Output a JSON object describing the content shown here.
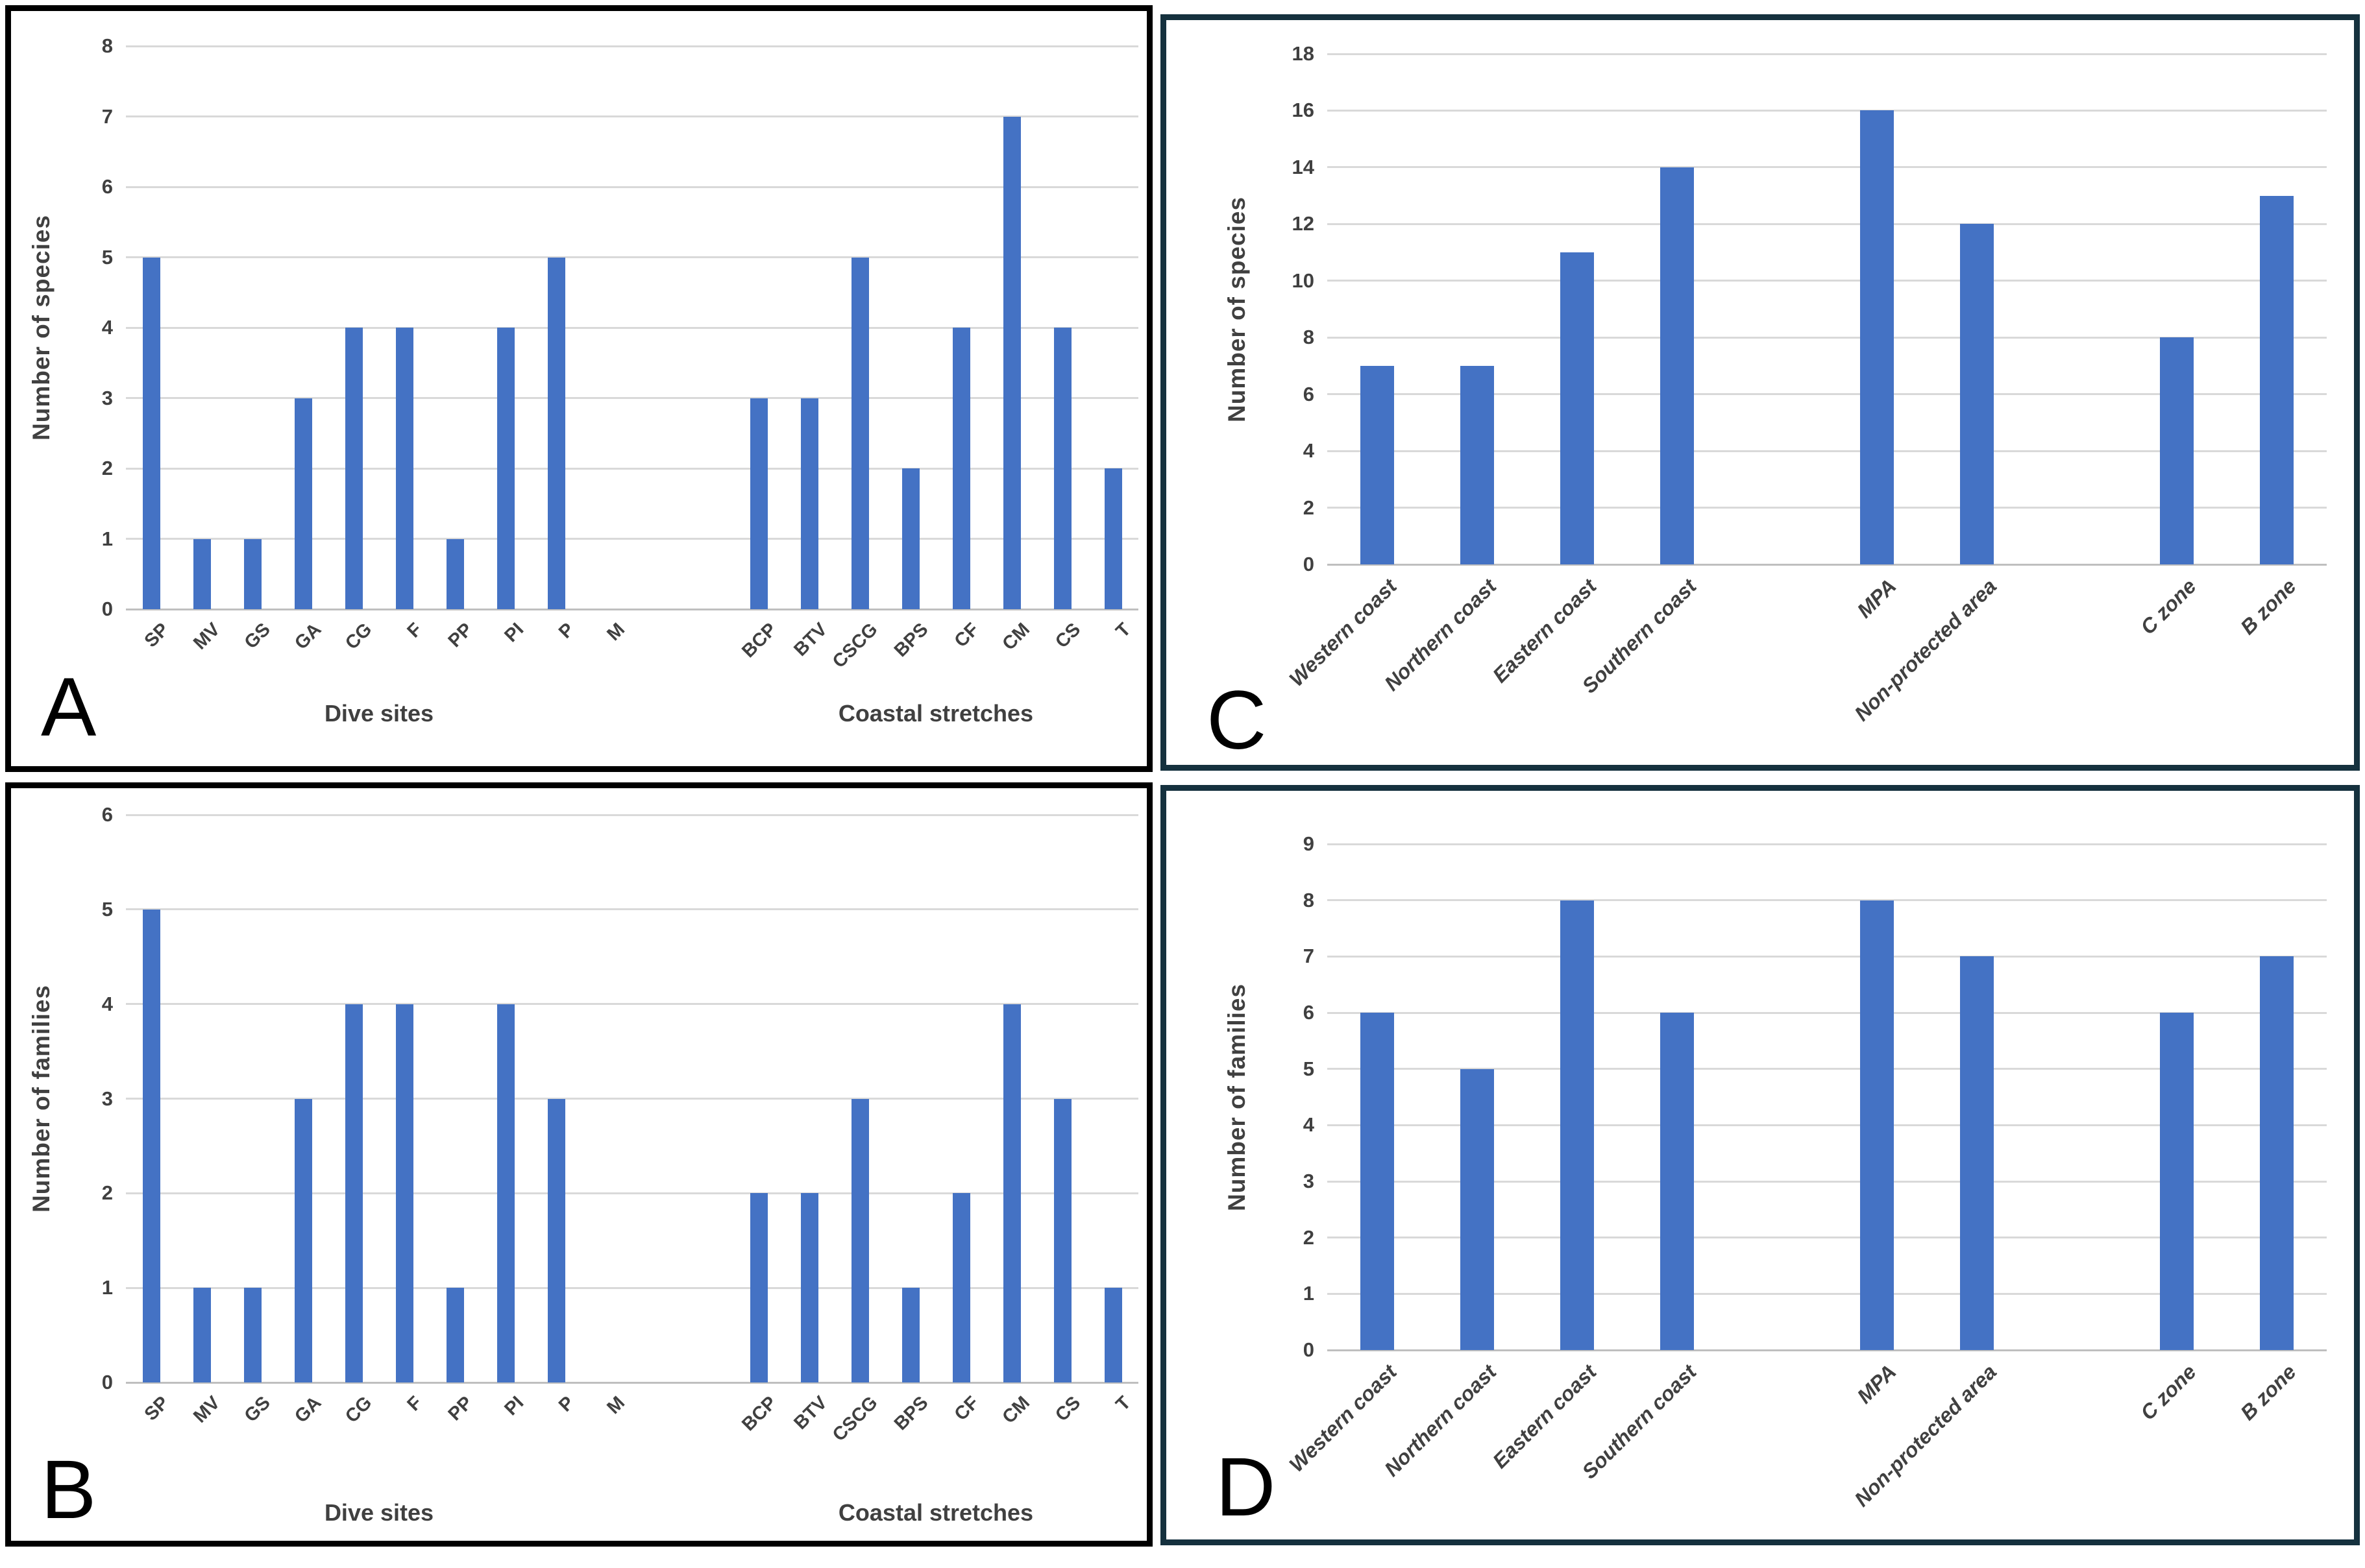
{
  "figure": {
    "bar_color": "#4472C4",
    "gridline_color": "#D9D9D9",
    "axis_line_color": "#BFBFBF",
    "text_color": "#404040",
    "panel_letter_color": "#000000",
    "left_panel_border_color": "#000000",
    "right_panel_border_color": "#15313E"
  },
  "chart_data": [
    {
      "type": "bar",
      "panel_letter": "A",
      "ylabel": "Number of species",
      "ylim": [
        0,
        8
      ],
      "ytick_step": 1,
      "yticks": [
        0,
        1,
        2,
        3,
        4,
        5,
        6,
        7,
        8
      ],
      "grid": true,
      "category_label_italic": false,
      "x_groups": [
        {
          "title": "Dive sites",
          "gap_after": 2,
          "categories": [
            "SP",
            "MV",
            "GS",
            "GA",
            "CG",
            "F",
            "PP",
            "PI",
            "P",
            "M"
          ],
          "values": [
            5,
            1,
            1,
            3,
            4,
            4,
            1,
            4,
            5,
            0
          ]
        },
        {
          "title": "Coastal stretches",
          "gap_after": 0,
          "categories": [
            "BCP",
            "BTV",
            "CSCG",
            "BPS",
            "CF",
            "CM",
            "CS",
            "T"
          ],
          "values": [
            3,
            3,
            5,
            2,
            4,
            7,
            4,
            2
          ]
        }
      ]
    },
    {
      "type": "bar",
      "panel_letter": "B",
      "ylabel": "Number of families",
      "ylim": [
        0,
        6
      ],
      "ytick_step": 1,
      "yticks": [
        0,
        1,
        2,
        3,
        4,
        5,
        6
      ],
      "grid": true,
      "category_label_italic": false,
      "x_groups": [
        {
          "title": "Dive sites",
          "gap_after": 2,
          "categories": [
            "SP",
            "MV",
            "GS",
            "GA",
            "CG",
            "F",
            "PP",
            "PI",
            "P",
            "M"
          ],
          "values": [
            5,
            1,
            1,
            3,
            4,
            4,
            1,
            4,
            3,
            0
          ]
        },
        {
          "title": "Coastal stretches",
          "gap_after": 0,
          "categories": [
            "BCP",
            "BTV",
            "CSCG",
            "BPS",
            "CF",
            "CM",
            "CS",
            "T"
          ],
          "values": [
            2,
            2,
            3,
            1,
            2,
            4,
            3,
            1
          ]
        }
      ]
    },
    {
      "type": "bar",
      "panel_letter": "C",
      "ylabel": "Number of species",
      "ylim": [
        0,
        18
      ],
      "ytick_step": 2,
      "yticks": [
        0,
        2,
        4,
        6,
        8,
        10,
        12,
        14,
        16,
        18
      ],
      "grid": true,
      "category_label_italic": true,
      "x_groups": [
        {
          "title": "",
          "gap_after": 1,
          "categories": [
            "Western coast",
            "Northern coast",
            "Eastern coast",
            "Southern coast"
          ],
          "values": [
            7,
            7,
            11,
            14
          ]
        },
        {
          "title": "",
          "gap_after": 1,
          "categories": [
            "MPA",
            "Non-protected area"
          ],
          "values": [
            16,
            12
          ]
        },
        {
          "title": "",
          "gap_after": 0,
          "categories": [
            "C zone",
            "B zone"
          ],
          "values": [
            8,
            13
          ]
        }
      ]
    },
    {
      "type": "bar",
      "panel_letter": "D",
      "ylabel": "Number of families",
      "ylim": [
        0,
        9
      ],
      "ytick_step": 1,
      "yticks": [
        0,
        1,
        2,
        3,
        4,
        5,
        6,
        7,
        8,
        9
      ],
      "grid": true,
      "category_label_italic": true,
      "x_groups": [
        {
          "title": "",
          "gap_after": 1,
          "categories": [
            "Western coast",
            "Northern coast",
            "Eastern coast",
            "Southern coast"
          ],
          "values": [
            6,
            5,
            8,
            6
          ]
        },
        {
          "title": "",
          "gap_after": 1,
          "categories": [
            "MPA",
            "Non-protected area"
          ],
          "values": [
            8,
            7
          ]
        },
        {
          "title": "",
          "gap_after": 0,
          "categories": [
            "C zone",
            "B zone"
          ],
          "values": [
            6,
            7
          ]
        }
      ]
    }
  ]
}
